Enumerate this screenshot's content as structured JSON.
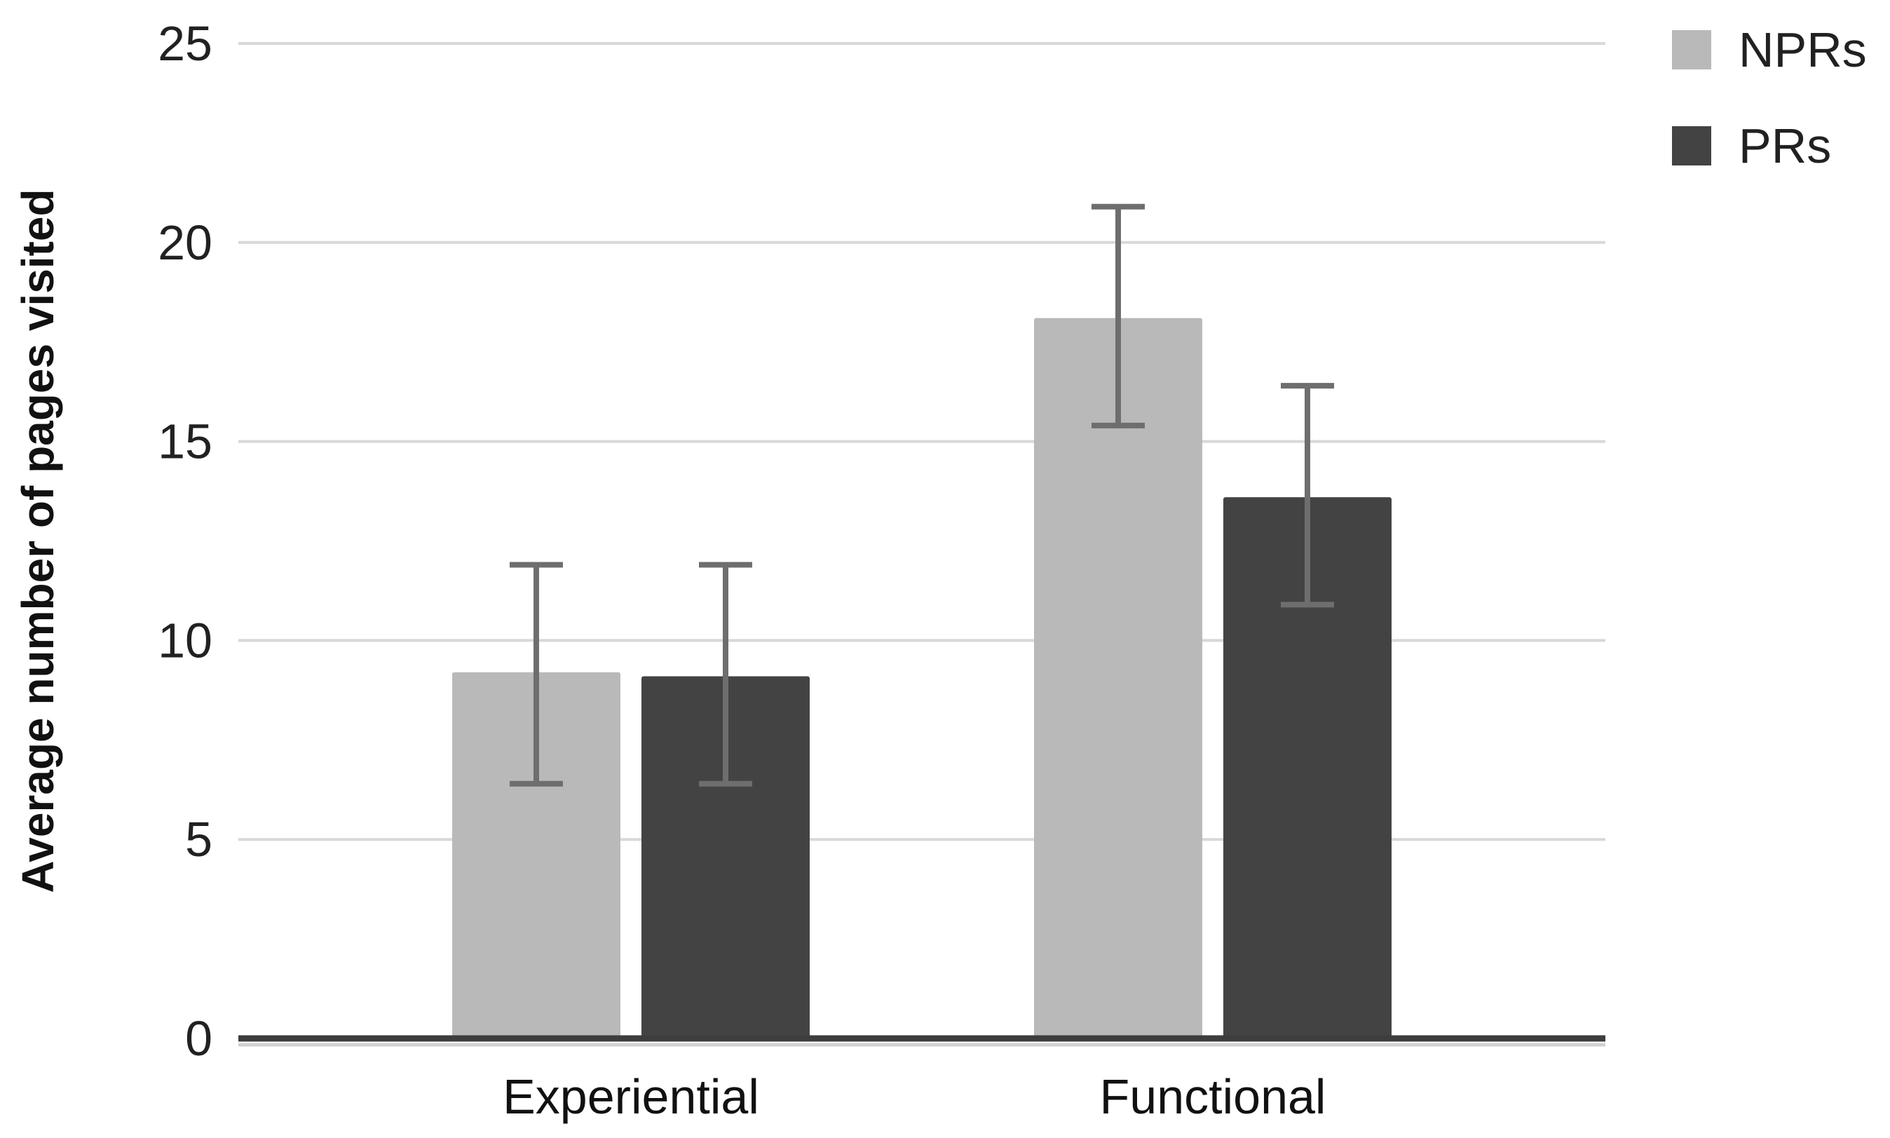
{
  "page": {
    "background_color": "#ffffff"
  },
  "chart_data": {
    "type": "bar",
    "title": "",
    "xlabel": "",
    "ylabel": "Average number of pages visited",
    "categories": [
      "Experiential",
      "Functional"
    ],
    "series": [
      {
        "name": "NPRs",
        "color": "#b9b9b9",
        "values": [
          9.2,
          18.1
        ],
        "error_low": [
          6.4,
          15.4
        ],
        "error_high": [
          11.9,
          20.9
        ]
      },
      {
        "name": "PRs",
        "color": "#434343",
        "values": [
          9.1,
          13.6
        ],
        "error_low": [
          6.4,
          10.9
        ],
        "error_high": [
          11.9,
          16.4
        ]
      }
    ],
    "ylim": [
      0,
      25
    ],
    "yticks": [
      0,
      5,
      10,
      15,
      20,
      25
    ],
    "grid": true,
    "legend_position": "top-right",
    "colors": {
      "gridline": "#d8d8d8",
      "axis_line": "#3d3d3d",
      "axis_shadow": "#d0d0d0",
      "error_bar": "#6e6e6e",
      "tick_text": "#212121",
      "label_text": "#111111"
    }
  }
}
